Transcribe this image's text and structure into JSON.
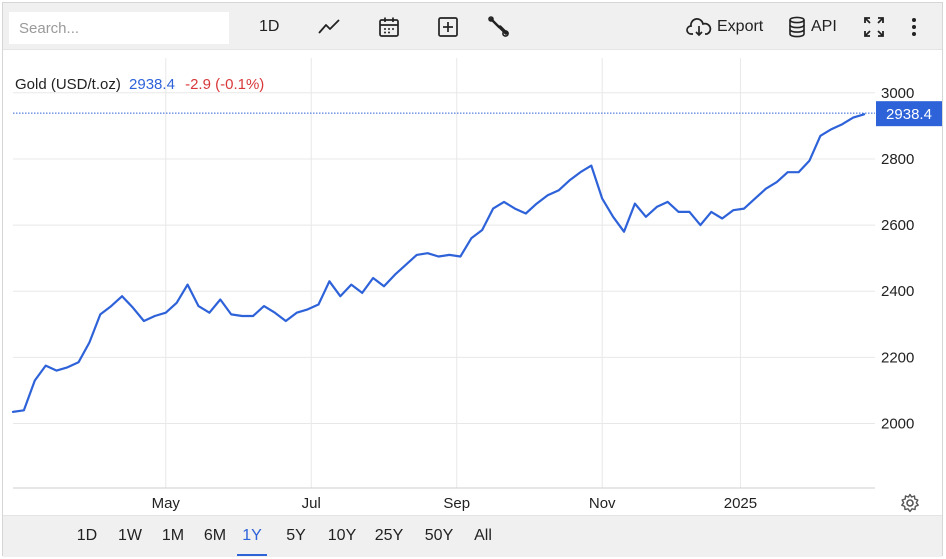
{
  "toolbar": {
    "search_placeholder": "Search...",
    "interval_label": "1D",
    "chart_type_icon": "line-chart-icon",
    "calendar_icon": "calendar-icon",
    "compare_icon": "plus-box-icon",
    "settings_icon": "wrench-icon",
    "export_label": "Export",
    "export_icon": "cloud-download-icon",
    "api_label": "API",
    "api_icon": "database-icon",
    "fullscreen_icon": "fullscreen-icon",
    "more_icon": "more-vertical-icon"
  },
  "header": {
    "name": "Gold (USD/t.oz)",
    "price": "2938.4",
    "change": "-2.9 (-0.1%)"
  },
  "price_tag": "2938.4",
  "range_buttons": [
    "1D",
    "1W",
    "1M",
    "6M",
    "1Y",
    "5Y",
    "10Y",
    "25Y",
    "50Y",
    "All"
  ],
  "active_range": "1Y",
  "colors": {
    "line": "#2e62d9",
    "negative": "#d9383a",
    "grid": "#e8e8e8"
  },
  "chart_data": {
    "type": "line",
    "title": "Gold (USD/t.oz)",
    "xlabel": "",
    "ylabel": "",
    "yticks": [
      2000,
      2200,
      2400,
      2600,
      2800,
      3000
    ],
    "ylim": [
      1805,
      3075
    ],
    "xticks": [
      {
        "label": "May",
        "x": 2.1
      },
      {
        "label": "Jul",
        "x": 4.1
      },
      {
        "label": "Sep",
        "x": 6.1
      },
      {
        "label": "Nov",
        "x": 8.1
      },
      {
        "label": "2025",
        "x": 10.0
      }
    ],
    "xlim": [
      0,
      11.85
    ],
    "grid": true,
    "last_value_line": 2938.4,
    "x": [
      0.0,
      0.15,
      0.3,
      0.45,
      0.6,
      0.75,
      0.9,
      1.05,
      1.2,
      1.35,
      1.5,
      1.65,
      1.8,
      1.95,
      2.1,
      2.25,
      2.4,
      2.55,
      2.7,
      2.85,
      3.0,
      3.15,
      3.3,
      3.45,
      3.6,
      3.75,
      3.9,
      4.05,
      4.2,
      4.35,
      4.5,
      4.65,
      4.8,
      4.95,
      5.1,
      5.25,
      5.4,
      5.55,
      5.7,
      5.85,
      6.0,
      6.15,
      6.3,
      6.45,
      6.6,
      6.75,
      6.9,
      7.05,
      7.2,
      7.35,
      7.5,
      7.65,
      7.8,
      7.95,
      8.1,
      8.25,
      8.4,
      8.55,
      8.7,
      8.85,
      9.0,
      9.15,
      9.3,
      9.45,
      9.6,
      9.75,
      9.9,
      10.05,
      10.2,
      10.35,
      10.5,
      10.65,
      10.8,
      10.95,
      11.1,
      11.25,
      11.4,
      11.55,
      11.7
    ],
    "series": [
      {
        "name": "Gold (USD/t.oz)",
        "values": [
          2035,
          2040,
          2130,
          2175,
          2160,
          2170,
          2185,
          2245,
          2330,
          2355,
          2385,
          2350,
          2310,
          2325,
          2335,
          2365,
          2420,
          2355,
          2335,
          2375,
          2330,
          2325,
          2325,
          2355,
          2335,
          2310,
          2335,
          2345,
          2360,
          2430,
          2385,
          2420,
          2395,
          2440,
          2415,
          2450,
          2480,
          2510,
          2515,
          2505,
          2510,
          2505,
          2560,
          2585,
          2650,
          2670,
          2650,
          2635,
          2665,
          2690,
          2705,
          2735,
          2760,
          2780,
          2680,
          2625,
          2580,
          2665,
          2625,
          2655,
          2670,
          2640,
          2640,
          2600,
          2640,
          2620,
          2645,
          2650,
          2680,
          2710,
          2730,
          2760,
          2760,
          2795,
          2870,
          2890,
          2905,
          2925,
          2935
        ]
      }
    ]
  }
}
